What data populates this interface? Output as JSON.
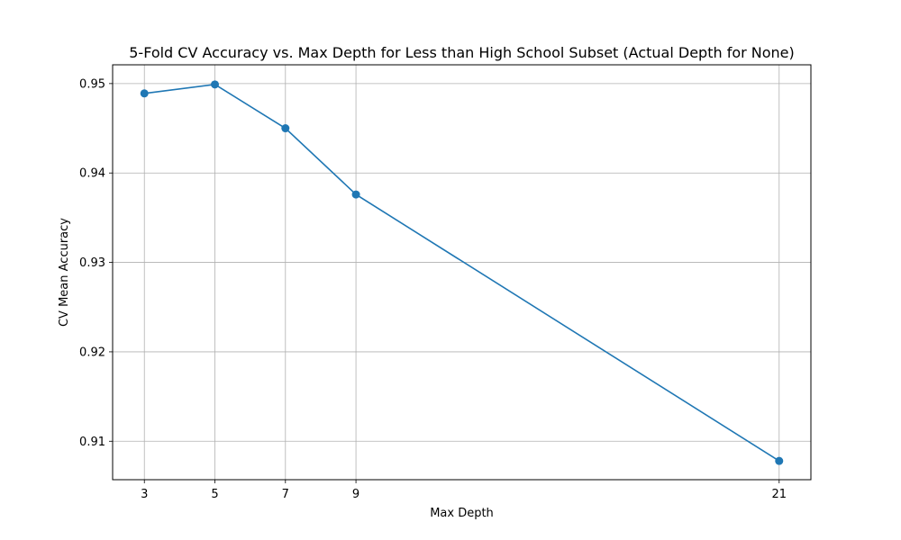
{
  "chart_data": {
    "type": "line",
    "title": "5-Fold CV Accuracy vs. Max Depth for Less than High School Subset (Actual Depth for None)",
    "xlabel": "Max Depth",
    "ylabel": "CV Mean Accuracy",
    "x_ticks": [
      3,
      5,
      7,
      9,
      21
    ],
    "y_ticks": [
      0.91,
      0.92,
      0.93,
      0.94,
      0.95
    ],
    "y_tick_labels": [
      "0.91",
      "0.92",
      "0.93",
      "0.94",
      "0.95"
    ],
    "xlim": [
      2.1,
      21.9
    ],
    "ylim": [
      0.9057,
      0.9521
    ],
    "grid": true,
    "series": [
      {
        "x": [
          3,
          5,
          7,
          9,
          21
        ],
        "values": [
          0.9489,
          0.9499,
          0.945,
          0.9376,
          0.9078
        ],
        "color": "#1f77b4",
        "marker": "circle"
      }
    ]
  }
}
